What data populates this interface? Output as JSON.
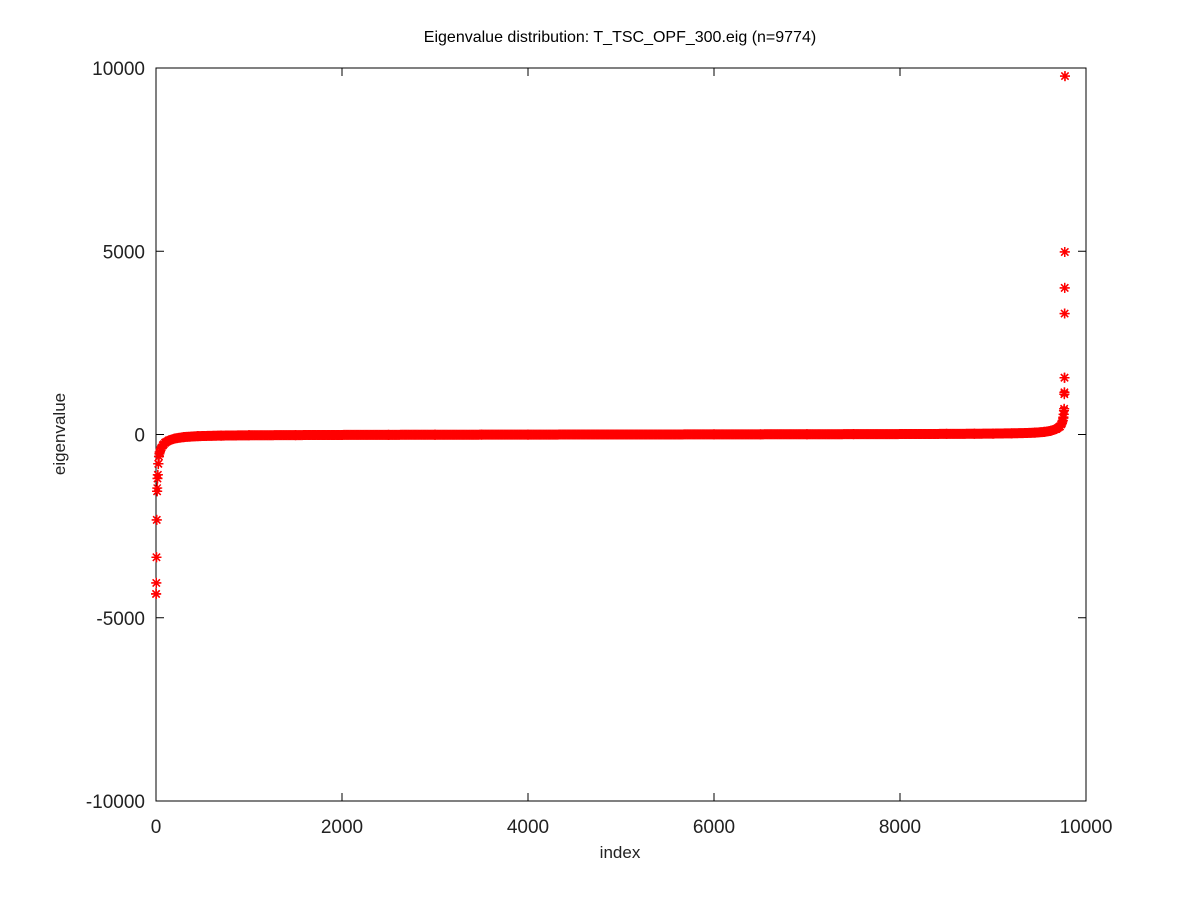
{
  "chart_data": {
    "type": "scatter",
    "title": "Eigenvalue distribution: T_TSC_OPF_300.eig (n=9774)",
    "xlabel": "index",
    "ylabel": "eigenvalue",
    "xlim": [
      0,
      10000
    ],
    "ylim": [
      -10000,
      10000
    ],
    "x_ticks": [
      "0",
      "2000",
      "4000",
      "6000",
      "8000",
      "10000"
    ],
    "y_ticks": [
      "-10000",
      "-5000",
      "0",
      "5000",
      "10000"
    ],
    "grid": false,
    "legend": "none",
    "marker": "asterisk",
    "series": [
      {
        "color": "#ff0000",
        "n": 9774,
        "points": [
          [
            1,
            -4350
          ],
          [
            3,
            -4050
          ],
          [
            5,
            -3350
          ],
          [
            8,
            -2330
          ],
          [
            12,
            -1550
          ],
          [
            16,
            -1200
          ],
          [
            20,
            -1100
          ],
          [
            25,
            -800
          ],
          [
            32,
            -600
          ],
          [
            40,
            -480
          ],
          [
            55,
            -380
          ],
          [
            75,
            -290
          ],
          [
            100,
            -220
          ],
          [
            140,
            -160
          ],
          [
            200,
            -110
          ],
          [
            300,
            -70
          ],
          [
            450,
            -45
          ],
          [
            700,
            -30
          ],
          [
            1000,
            -22
          ],
          [
            1500,
            -16
          ],
          [
            2000,
            -12
          ],
          [
            2500,
            -9
          ],
          [
            3000,
            -7
          ],
          [
            3500,
            -5
          ],
          [
            4000,
            -3
          ],
          [
            4500,
            -1
          ],
          [
            5000,
            0
          ],
          [
            5500,
            1
          ],
          [
            6000,
            3
          ],
          [
            6500,
            5
          ],
          [
            7000,
            7
          ],
          [
            7500,
            9
          ],
          [
            8000,
            12
          ],
          [
            8500,
            16
          ],
          [
            8800,
            20
          ],
          [
            9000,
            25
          ],
          [
            9200,
            32
          ],
          [
            9350,
            40
          ],
          [
            9450,
            50
          ],
          [
            9550,
            70
          ],
          [
            9620,
            100
          ],
          [
            9680,
            150
          ],
          [
            9720,
            220
          ],
          [
            9740,
            300
          ],
          [
            9750,
            380
          ],
          [
            9756,
            450
          ],
          [
            9760,
            550
          ],
          [
            9763,
            650
          ],
          [
            9765,
            700
          ],
          [
            9767,
            1100
          ],
          [
            9768,
            1150
          ],
          [
            9769,
            1550
          ],
          [
            9770,
            3300
          ],
          [
            9771,
            4000
          ],
          [
            9772,
            4980
          ],
          [
            9774,
            9780
          ]
        ]
      }
    ]
  }
}
